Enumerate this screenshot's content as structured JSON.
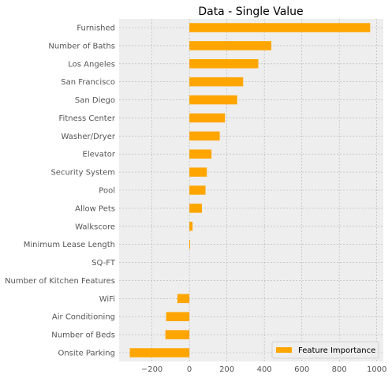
{
  "chart_data": {
    "type": "bar",
    "orientation": "horizontal",
    "title": "Data - Single Value",
    "xlabel": "",
    "ylabel": "",
    "categories": [
      "Furnished",
      "Number of Baths",
      "Los Angeles",
      "San Francisco",
      "San Diego",
      "Fitness Center",
      "Washer/Dryer",
      "Elevator",
      "Security System",
      "Pool",
      "Allow Pets",
      "Walkscore",
      "Minimum Lease Length",
      "SQ-FT",
      "Number of Kitchen Features",
      "WiFi",
      "Air Conditioning",
      "Number of Beds",
      "Onsite Parking"
    ],
    "series": [
      {
        "name": "Feature Importance",
        "color": "#ffa500",
        "values": [
          965,
          437,
          368,
          287,
          255,
          190,
          162,
          118,
          93,
          86,
          67,
          17,
          4,
          0,
          0,
          -64,
          -124,
          -128,
          -318
        ]
      }
    ],
    "xlim": [
      -375,
      1035
    ],
    "xticks": [
      -200,
      0,
      200,
      400,
      600,
      800,
      1000
    ],
    "xtick_labels": [
      "−200",
      "0",
      "200",
      "400",
      "600",
      "800",
      "1000"
    ],
    "grid": true,
    "legend_position": "lower-right"
  }
}
